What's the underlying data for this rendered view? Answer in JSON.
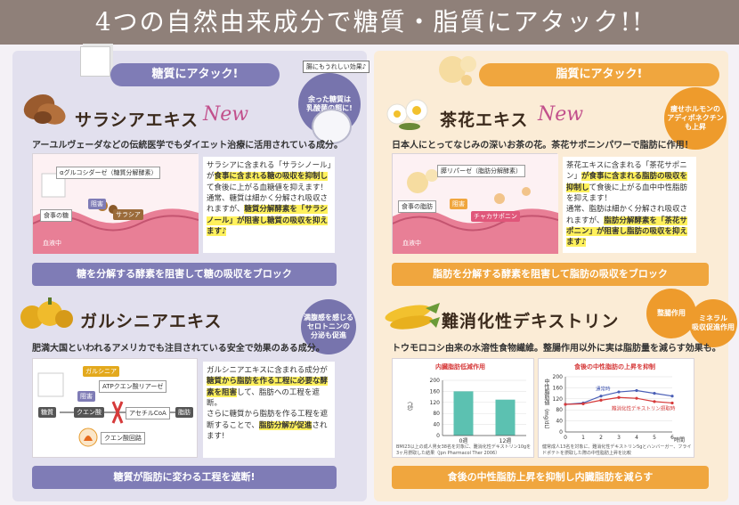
{
  "banner": "4つの自然由来成分で糖質・脂質にアタック!!",
  "left": {
    "pill": "糖質にアタック!",
    "callout_badge": "腸にもうれしい効果♪",
    "callout_circle": "余った糖質は\n乳酸菌の餌に!",
    "salacia": {
      "title": "サラシアエキス",
      "new": "New",
      "desc": "アーユルヴェーダなどの伝統医学でもダイエット治療に活用されている成分。",
      "diagram": {
        "enzyme": "αグルコシダーゼ（糖質分解酵素）",
        "block": "阻害",
        "sugar": "食事の糖",
        "agent": "サラシア",
        "blood": "血液中"
      },
      "detail_1": "サラシアに含まれる「サラシノール」が",
      "detail_hl1": "食事に含まれる糖の吸収を抑制し",
      "detail_2": "て食後に上がる血糖値を抑えます！",
      "detail_3": "通常、糖質は細かく分解され吸収さ",
      "detail_4": "れますが、",
      "detail_hl2": "糖質分解酵素を「サラシノール」が阻害し糖質の吸収を抑えます♪",
      "bar": "糖を分解する酵素を阻害して糖の吸収をブロック"
    },
    "garcinia": {
      "title": "ガルシニアエキス",
      "circle": "満腹感を感じる\nセロトニンの\n分泌も促進",
      "desc": "肥満大国といわれるアメリカでも注目されている安全で効果のある成分。",
      "diagram": {
        "garcinia": "ガルシニア",
        "block": "阻害",
        "enzyme": "ATPクエン酸リアーゼ",
        "sugar": "糖質",
        "citric": "クエン酸",
        "acetyl": "アセチルCoA",
        "fat": "脂肪",
        "cycle": "クエン酸回路"
      },
      "detail_1": "ガルシニアエキスに含まれる成分が",
      "detail_hl1": "糖質から脂肪を作る工程に必要な酵素を阻害",
      "detail_2": "して、脂肪への工程を遮断。",
      "detail_3": "さらに糖質から脂肪を作る工程を遮断",
      "detail_4": "することで、",
      "detail_hl2": "脂肪分解が促進",
      "detail_5": "されます!",
      "bar": "糖質が脂肪に変わる工程を遮断!"
    }
  },
  "right": {
    "pill": "脂質にアタック!",
    "tea": {
      "title": "茶花エキス",
      "new": "New",
      "circle": "痩せホルモンの\nアディポネクチン\nも上昇",
      "desc": "日本人にとってなじみの深いお茶の花。茶花サポニンパワーで脂肪に作用！",
      "diagram": {
        "enzyme": "膵リパーゼ（脂肪分解酵素）",
        "fat": "食事の脂肪",
        "block": "阻害",
        "agent": "チャカサポニン",
        "blood": "血液中"
      },
      "detail_1": "茶花エキスに含まれる「茶花サポニン」",
      "detail_hl1": "が食事に含まれる脂肪の吸収を抑制し",
      "detail_2": "て食後に上がる血中中性脂肪を抑",
      "detail_3": "えます！",
      "detail_4": "通常、脂肪は細かく分解され吸収さ",
      "detail_5": "れますが、",
      "detail_hl2": "脂肪分解酵素を「茶花サポニン」が阻害し脂肪の吸収を抑えます♪",
      "bar": "脂肪を分解する酵素を阻害して脂肪の吸収をブロック"
    },
    "dextrin": {
      "title": "難消化性デキストリン",
      "circle_1": "整腸作用",
      "circle_2": "ミネラル\n吸収促進作用",
      "desc": "トウモロコシ由来の水溶性食物繊維。整腸作用以外に実は脂肪量を減らす効果も。",
      "bar": "食後の中性脂肪上昇を抑制し内臓脂肪を減らす"
    }
  },
  "chart_data": [
    {
      "type": "bar",
      "title": "内臓脂肪低減作用",
      "ylabel": "（㎠）",
      "categories": [
        "0週",
        "12週"
      ],
      "values": [
        160,
        130
      ],
      "ylim": [
        0,
        200
      ],
      "yticks": [
        0,
        40,
        80,
        120,
        160,
        200
      ],
      "note": "BMI23以上の成人男女38名を対象に、難消化性デキストリン10gを3ヶ月摂取した結果（Jpn Pharmacol Ther 2006）",
      "bar_color": "#5cc1b1"
    },
    {
      "type": "line",
      "title": "食後の中性脂肪の上昇を抑制",
      "ylabel": "中性脂肪値（mg/dL）",
      "xlabel": "時間",
      "x": [
        0,
        1,
        2,
        3,
        4,
        5,
        6
      ],
      "ylim": [
        0,
        200
      ],
      "yticks": [
        0,
        40,
        80,
        120,
        160,
        200
      ],
      "series": [
        {
          "name": "通常時",
          "values": [
            100,
            105,
            130,
            145,
            150,
            140,
            130
          ],
          "color": "#4a5fb6"
        },
        {
          "name": "難消化性デキストリン摂取時",
          "values": [
            100,
            102,
            115,
            125,
            122,
            110,
            105
          ],
          "color": "#d63a3a"
        }
      ],
      "note": "健常成人13名を対象に、難消化性デキストリン5gとハンバーガー、フライドポテトを摂取した際の中性脂肪上昇を比較"
    }
  ]
}
